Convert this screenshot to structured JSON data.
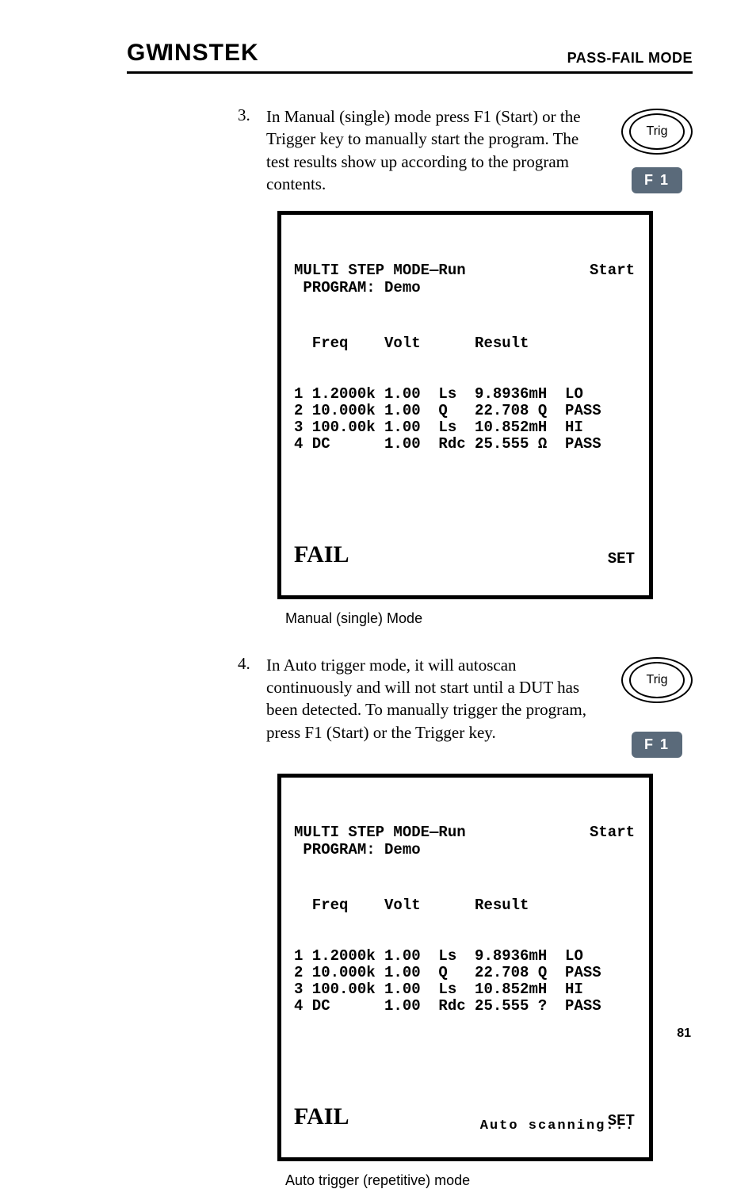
{
  "header": {
    "brand": "GWINSTEK",
    "section": "PASS-FAIL MODE"
  },
  "step3": {
    "num": "3.",
    "text": "In Manual (single) mode press F1 (Start) or the Trigger key to manually start the program. The test results show up according to the program contents.",
    "trig_label": "Trig",
    "fkey": "F 1"
  },
  "screen1": {
    "title1": "MULTI STEP MODE—Run",
    "title2": "PROGRAM: Demo",
    "start": "Start",
    "col_head": "  Freq    Volt      Result",
    "rows": [
      "1 1.2000k 1.00  Ls  9.8936mH  LO",
      "2 10.000k 1.00  Q   22.708 Q  PASS",
      "3 100.00k 1.00  Ls  10.852mH  HI",
      "4 DC      1.00  Rdc 25.555 Ω  PASS"
    ],
    "fail": "FAIL",
    "set": "SET"
  },
  "caption1": "Manual (single) Mode",
  "step4": {
    "num": "4.",
    "text": "In Auto trigger mode, it will autoscan continuously and will not start until a DUT has been detected. To manually trigger the program, press F1 (Start) or the Trigger key.",
    "trig_label": "Trig",
    "fkey": "F 1"
  },
  "screen2": {
    "title1": "MULTI STEP MODE—Run",
    "title2": "PROGRAM: Demo",
    "start": "Start",
    "col_head": "  Freq    Volt      Result",
    "rows": [
      "1 1.2000k 1.00  Ls  9.8936mH  LO",
      "2 10.000k 1.00  Q   22.708 Q  PASS",
      "3 100.00k 1.00  Ls  10.852mH  HI",
      "4 DC      1.00  Rdc 25.555 ?  PASS"
    ],
    "fail": "FAIL",
    "set": "SET",
    "scanning": "Auto scanning..."
  },
  "caption2": "Auto trigger (repetitive) mode",
  "page": "81",
  "colors": {
    "fkey_bg": "#5a6a7a",
    "text": "#000000",
    "bg": "#ffffff"
  }
}
